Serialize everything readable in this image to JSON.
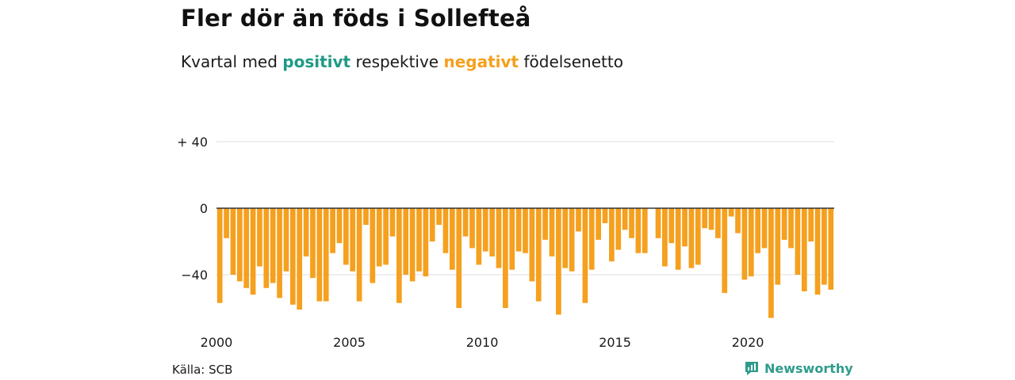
{
  "title": "Fler dör än föds i Sollefteå",
  "subtitle": {
    "prefix": "Kvartal med ",
    "positive": "positivt",
    "middle": " respektive ",
    "negative": "negativt",
    "suffix": " födelsenetto"
  },
  "colors": {
    "positive": "#1f9a86",
    "negative": "#f5a01e",
    "zero_line": "#333333",
    "grid": "#dddddd"
  },
  "source": "Källa: SCB",
  "brand": {
    "name": "Newsworthy",
    "icon": "newsworthy-logo-icon"
  },
  "chart_data": {
    "type": "bar",
    "x_start": "2000 Q1",
    "frequency": "quarterly",
    "ylim": [
      -68,
      45
    ],
    "yticks": [
      {
        "value": 40,
        "label": "+ 40"
      },
      {
        "value": 0,
        "label": "0"
      },
      {
        "value": -40,
        "label": "−40"
      }
    ],
    "xticks": [
      "2000",
      "2005",
      "2010",
      "2015",
      "2020"
    ],
    "series": [
      {
        "values": [
          -57,
          -18,
          -40,
          -44,
          -48,
          -52,
          -35,
          -48,
          -45,
          -54,
          -38,
          -58,
          -61,
          -29,
          -42,
          -56,
          -56,
          -27,
          -21,
          -34,
          -38,
          -56,
          -10,
          -45,
          -35,
          -34,
          -17,
          -57,
          -40,
          -44,
          -38,
          -41,
          -20,
          -10,
          -27,
          -37,
          -60,
          -17,
          -24,
          -34,
          -26,
          -29,
          -36,
          -60,
          -37,
          -26,
          -27,
          -44,
          -56,
          -19,
          -29,
          -64,
          -36,
          -38,
          -14,
          -57,
          -37,
          -19,
          -9,
          -32,
          -25,
          -13,
          -18,
          -27,
          -27,
          0,
          -18,
          -35,
          -21,
          -37,
          -23,
          -36,
          -34,
          -12,
          -13,
          -18,
          -51,
          -5,
          -15,
          -43,
          -41,
          -27,
          -24,
          -66,
          -46,
          -19,
          -24,
          -40,
          -50,
          -20,
          -52,
          -46,
          -49
        ]
      }
    ]
  }
}
